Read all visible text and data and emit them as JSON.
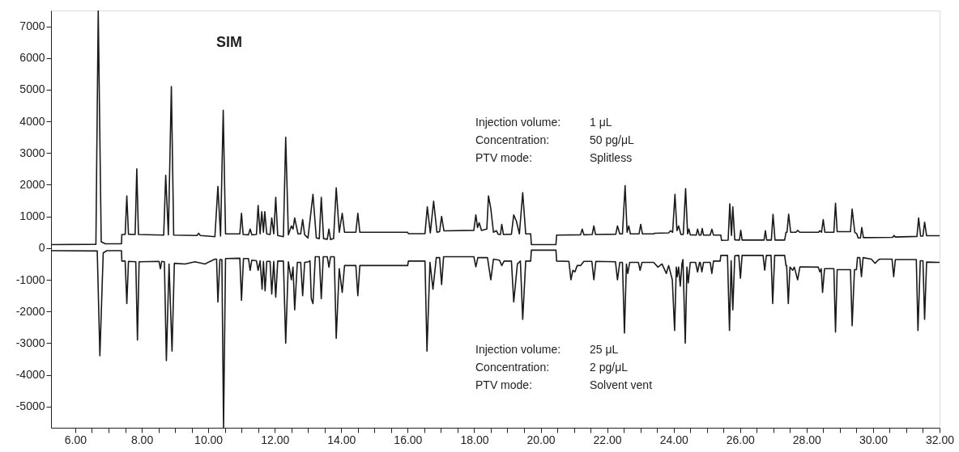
{
  "chart_data": {
    "type": "line",
    "annotations": [
      "SIM",
      "Injection volume:",
      "1 μL",
      "Concentration:",
      "50 pg/μL",
      "PTV mode:",
      "Splitless",
      "Injection volume:",
      "25 μL",
      "Concentration:",
      "2 pg/μL",
      "PTV mode:",
      "Solvent vent"
    ],
    "xlim": [
      5.27,
      32
    ],
    "ylim": [
      -5670,
      7500
    ],
    "xticks": [
      {
        "value": 6,
        "label": "6.00"
      },
      {
        "value": 6.5,
        "label": null
      },
      {
        "value": 7,
        "label": null
      },
      {
        "value": 7.5,
        "label": null
      },
      {
        "value": 8,
        "label": "8.00"
      },
      {
        "value": 8.5,
        "label": null
      },
      {
        "value": 9,
        "label": null
      },
      {
        "value": 9.5,
        "label": null
      },
      {
        "value": 10,
        "label": "10.00"
      },
      {
        "value": 10.5,
        "label": null
      },
      {
        "value": 11,
        "label": null
      },
      {
        "value": 11.5,
        "label": null
      },
      {
        "value": 12,
        "label": "12.00"
      },
      {
        "value": 12.5,
        "label": null
      },
      {
        "value": 13,
        "label": null
      },
      {
        "value": 13.5,
        "label": null
      },
      {
        "value": 14,
        "label": "14.00"
      },
      {
        "value": 14.5,
        "label": null
      },
      {
        "value": 15,
        "label": null
      },
      {
        "value": 15.5,
        "label": null
      },
      {
        "value": 16,
        "label": "16.00"
      },
      {
        "value": 16.5,
        "label": null
      },
      {
        "value": 17,
        "label": null
      },
      {
        "value": 17.5,
        "label": null
      },
      {
        "value": 18,
        "label": "18.00"
      },
      {
        "value": 18.5,
        "label": null
      },
      {
        "value": 19,
        "label": null
      },
      {
        "value": 19.5,
        "label": null
      },
      {
        "value": 20,
        "label": "20.00"
      },
      {
        "value": 20.5,
        "label": null
      },
      {
        "value": 21,
        "label": null
      },
      {
        "value": 21.5,
        "label": null
      },
      {
        "value": 22,
        "label": "22.00"
      },
      {
        "value": 22.5,
        "label": null
      },
      {
        "value": 23,
        "label": null
      },
      {
        "value": 23.5,
        "label": null
      },
      {
        "value": 24,
        "label": "24.00"
      },
      {
        "value": 24.5,
        "label": null
      },
      {
        "value": 25,
        "label": null
      },
      {
        "value": 25.5,
        "label": null
      },
      {
        "value": 26,
        "label": "26.00"
      },
      {
        "value": 26.5,
        "label": null
      },
      {
        "value": 27,
        "label": null
      },
      {
        "value": 27.5,
        "label": null
      },
      {
        "value": 28,
        "label": "28.00"
      },
      {
        "value": 28.5,
        "label": null
      },
      {
        "value": 29,
        "label": null
      },
      {
        "value": 29.5,
        "label": null
      },
      {
        "value": 30,
        "label": "30.00"
      },
      {
        "value": 30.5,
        "label": null
      },
      {
        "value": 31,
        "label": null
      },
      {
        "value": 31.5,
        "label": null
      },
      {
        "value": 32,
        "label": "32.00"
      }
    ],
    "yticks": [
      -5000,
      -4000,
      -3000,
      -2000,
      -1000,
      0,
      1000,
      2000,
      3000,
      4000,
      5000,
      6000,
      7000
    ],
    "grid": false,
    "marker": "none",
    "line_style": "solid",
    "series": [
      {
        "color": "#1a1a1a",
        "x": [
          5.27,
          6.62,
          6.69,
          6.78,
          6.9,
          7.39,
          7.4,
          7.5,
          7.55,
          7.6,
          7.8,
          7.85,
          7.9,
          8.66,
          8.72,
          8.8,
          8.89,
          8.96,
          9.66,
          9.71,
          9.76,
          10.2,
          10.29,
          10.37,
          10.45,
          10.52,
          10.95,
          11.0,
          11.05,
          11.21,
          11.26,
          11.31,
          11.45,
          11.5,
          11.56,
          11.61,
          11.66,
          11.7,
          11.76,
          11.86,
          11.91,
          11.97,
          12.03,
          12.09,
          12.26,
          12.33,
          12.41,
          12.5,
          12.55,
          12.6,
          12.7,
          12.78,
          12.84,
          12.9,
          13.0,
          13.15,
          13.25,
          13.34,
          13.4,
          13.47,
          13.58,
          13.63,
          13.68,
          13.77,
          13.85,
          13.94,
          14.03,
          14.1,
          14.44,
          14.5,
          14.56,
          16.0,
          16.02,
          16.52,
          16.59,
          16.68,
          16.78,
          16.88,
          16.96,
          17.02,
          17.09,
          17.99,
          18.05,
          18.1,
          18.15,
          18.22,
          18.38,
          18.43,
          18.5,
          18.58,
          18.67,
          18.72,
          18.79,
          18.83,
          18.88,
          19.12,
          19.19,
          19.27,
          19.36,
          19.46,
          19.55,
          19.7,
          19.72,
          20.46,
          20.48,
          21.2,
          21.25,
          21.3,
          21.55,
          21.6,
          21.65,
          22.26,
          22.31,
          22.38,
          22.46,
          22.54,
          22.6,
          22.65,
          22.7,
          22.96,
          23.01,
          23.06,
          23.4,
          23.43,
          23.85,
          23.91,
          23.97,
          24.04,
          24.1,
          24.15,
          24.22,
          24.29,
          24.36,
          24.42,
          24.46,
          24.5,
          24.68,
          24.72,
          24.77,
          24.82,
          24.86,
          24.9,
          25.1,
          25.15,
          25.2,
          25.42,
          25.44,
          25.64,
          25.69,
          25.74,
          25.78,
          25.84,
          25.98,
          26.02,
          26.06,
          26.72,
          26.76,
          26.8,
          26.94,
          26.99,
          27.05,
          27.34,
          27.38,
          27.41,
          27.46,
          27.52,
          27.68,
          27.73,
          27.8,
          28.36,
          28.4,
          28.45,
          28.5,
          28.55,
          28.82,
          28.87,
          28.92,
          29.32,
          29.37,
          29.45,
          29.51,
          29.55,
          29.62,
          29.66,
          29.71,
          30.59,
          30.63,
          30.67,
          31.32,
          31.37,
          31.43,
          31.5,
          31.55,
          31.61,
          32.0
        ],
        "values": [
          110,
          120,
          7500,
          200,
          135,
          135,
          430,
          430,
          1650,
          440,
          430,
          2500,
          430,
          410,
          2300,
          420,
          5100,
          410,
          400,
          470,
          400,
          360,
          1950,
          380,
          4350,
          450,
          450,
          1100,
          430,
          420,
          600,
          420,
          430,
          1350,
          450,
          1150,
          500,
          1150,
          450,
          430,
          950,
          450,
          1600,
          400,
          360,
          3500,
          420,
          700,
          600,
          950,
          450,
          450,
          900,
          420,
          320,
          1700,
          320,
          300,
          1600,
          300,
          280,
          600,
          270,
          300,
          1900,
          500,
          1100,
          500,
          500,
          1100,
          500,
          500,
          455,
          460,
          1300,
          480,
          1480,
          500,
          520,
          1000,
          545,
          560,
          1050,
          650,
          800,
          560,
          600,
          1650,
          1250,
          500,
          550,
          440,
          430,
          750,
          430,
          440,
          1050,
          850,
          450,
          1750,
          450,
          450,
          110,
          110,
          410,
          420,
          600,
          420,
          430,
          700,
          430,
          440,
          700,
          450,
          450,
          1970,
          500,
          700,
          450,
          450,
          750,
          450,
          450,
          470,
          480,
          550,
          500,
          1700,
          550,
          700,
          430,
          430,
          1880,
          450,
          600,
          420,
          410,
          600,
          410,
          410,
          620,
          410,
          410,
          600,
          410,
          410,
          245,
          250,
          1400,
          400,
          1300,
          260,
          255,
          560,
          255,
          255,
          550,
          255,
          255,
          1070,
          255,
          255,
          500,
          500,
          1070,
          500,
          500,
          560,
          500,
          500,
          550,
          500,
          900,
          500,
          500,
          1420,
          520,
          520,
          1230,
          500,
          450,
          320,
          320,
          650,
          330,
          340,
          400,
          350,
          370,
          950,
          380,
          380,
          820,
          390,
          390
        ]
      },
      {
        "color": "#1a1a1a",
        "x": [
          5.27,
          6.66,
          6.74,
          6.84,
          6.95,
          7.39,
          7.4,
          7.5,
          7.55,
          7.6,
          7.82,
          7.87,
          7.92,
          8.52,
          8.56,
          8.6,
          8.68,
          8.74,
          8.82,
          8.91,
          8.98,
          9.3,
          9.6,
          9.9,
          10.2,
          10.25,
          10.29,
          10.35,
          10.41,
          10.46,
          10.52,
          10.95,
          11.0,
          11.06,
          11.21,
          11.26,
          11.31,
          11.45,
          11.5,
          11.56,
          11.62,
          11.66,
          11.71,
          11.76,
          11.86,
          11.91,
          11.97,
          12.03,
          12.09,
          12.26,
          12.33,
          12.41,
          12.5,
          12.55,
          12.6,
          12.68,
          12.78,
          12.84,
          12.9,
          13.02,
          13.06,
          13.1,
          13.15,
          13.22,
          13.34,
          13.4,
          13.46,
          13.58,
          13.63,
          13.68,
          13.79,
          13.85,
          13.94,
          14.03,
          14.1,
          14.44,
          14.5,
          14.56,
          16.0,
          16.02,
          16.52,
          16.58,
          16.67,
          16.76,
          16.86,
          16.96,
          17.02,
          17.08,
          17.99,
          18.05,
          18.11,
          18.4,
          18.5,
          18.58,
          18.76,
          18.83,
          18.9,
          19.12,
          19.19,
          19.3,
          19.39,
          19.46,
          19.55,
          19.7,
          19.72,
          20.46,
          20.48,
          20.85,
          20.91,
          20.97,
          21.03,
          21.1,
          21.2,
          21.3,
          21.54,
          21.6,
          21.66,
          22.25,
          22.31,
          22.38,
          22.46,
          22.52,
          22.58,
          22.62,
          22.68,
          22.94,
          22.99,
          23.05,
          23.4,
          23.53,
          23.65,
          23.78,
          23.85,
          23.96,
          24.03,
          24.08,
          24.11,
          24.15,
          24.2,
          24.25,
          24.28,
          24.35,
          24.4,
          24.44,
          24.5,
          24.66,
          24.72,
          24.78,
          24.8,
          24.85,
          24.9,
          25.1,
          25.15,
          25.2,
          25.4,
          25.42,
          25.62,
          25.68,
          25.73,
          25.78,
          25.84,
          25.96,
          26.01,
          26.06,
          26.69,
          26.74,
          26.79,
          26.93,
          26.98,
          27.04,
          27.34,
          27.38,
          27.4,
          27.45,
          27.5,
          27.58,
          27.63,
          27.73,
          27.8,
          28.35,
          28.4,
          28.44,
          28.48,
          28.54,
          28.82,
          28.87,
          28.92,
          29.32,
          29.37,
          29.44,
          29.5,
          29.53,
          29.6,
          29.65,
          29.7,
          29.95,
          30.06,
          30.15,
          30.2,
          30.57,
          30.62,
          30.67,
          31.3,
          31.35,
          31.42,
          31.5,
          31.55,
          31.61,
          32.0
        ],
        "values": [
          -80,
          -90,
          -3400,
          -150,
          -80,
          -80,
          -410,
          -410,
          -1750,
          -420,
          -430,
          -2900,
          -430,
          -420,
          -650,
          -420,
          -430,
          -3550,
          -500,
          -3250,
          -480,
          -500,
          -430,
          -500,
          -350,
          -350,
          -1700,
          -360,
          -360,
          -5670,
          -330,
          -320,
          -1650,
          -330,
          -330,
          -700,
          -380,
          -400,
          -700,
          -400,
          -1300,
          -420,
          -1350,
          -420,
          -420,
          -1450,
          -420,
          -1550,
          -410,
          -410,
          -3000,
          -430,
          -1000,
          -600,
          -1950,
          -450,
          -450,
          -1500,
          -450,
          -430,
          -400,
          -1600,
          -1750,
          -270,
          -270,
          -1600,
          -270,
          -270,
          -600,
          -270,
          -270,
          -2850,
          -650,
          -1400,
          -550,
          -550,
          -1500,
          -550,
          -550,
          -410,
          -410,
          -3250,
          -450,
          -1300,
          -300,
          -300,
          -1150,
          -270,
          -270,
          -590,
          -300,
          -300,
          -1000,
          -350,
          -380,
          -550,
          -410,
          -410,
          -1700,
          -500,
          -410,
          -2250,
          -410,
          -410,
          -65,
          -65,
          -410,
          -420,
          -1000,
          -700,
          -750,
          -550,
          -550,
          -420,
          -420,
          -1000,
          -420,
          -430,
          -1000,
          -450,
          -450,
          -2680,
          -500,
          -800,
          -450,
          -450,
          -700,
          -450,
          -450,
          -600,
          -500,
          -800,
          -550,
          -1000,
          -2600,
          -600,
          -900,
          -600,
          -1200,
          -500,
          -360,
          -3000,
          -600,
          -1100,
          -450,
          -450,
          -750,
          -450,
          -450,
          -750,
          -450,
          -450,
          -800,
          -410,
          -410,
          -230,
          -230,
          -2600,
          -400,
          -1950,
          -240,
          -230,
          -950,
          -230,
          -230,
          -700,
          -230,
          -230,
          -1750,
          -230,
          -230,
          -550,
          -550,
          -1750,
          -600,
          -700,
          -600,
          -1000,
          -590,
          -600,
          -750,
          -650,
          -1400,
          -650,
          -650,
          -2650,
          -680,
          -680,
          -2450,
          -680,
          -680,
          -300,
          -300,
          -900,
          -300,
          -350,
          -480,
          -380,
          -350,
          -350,
          -900,
          -360,
          -360,
          -2600,
          -400,
          -400,
          -2250,
          -440,
          -450
        ]
      }
    ]
  }
}
